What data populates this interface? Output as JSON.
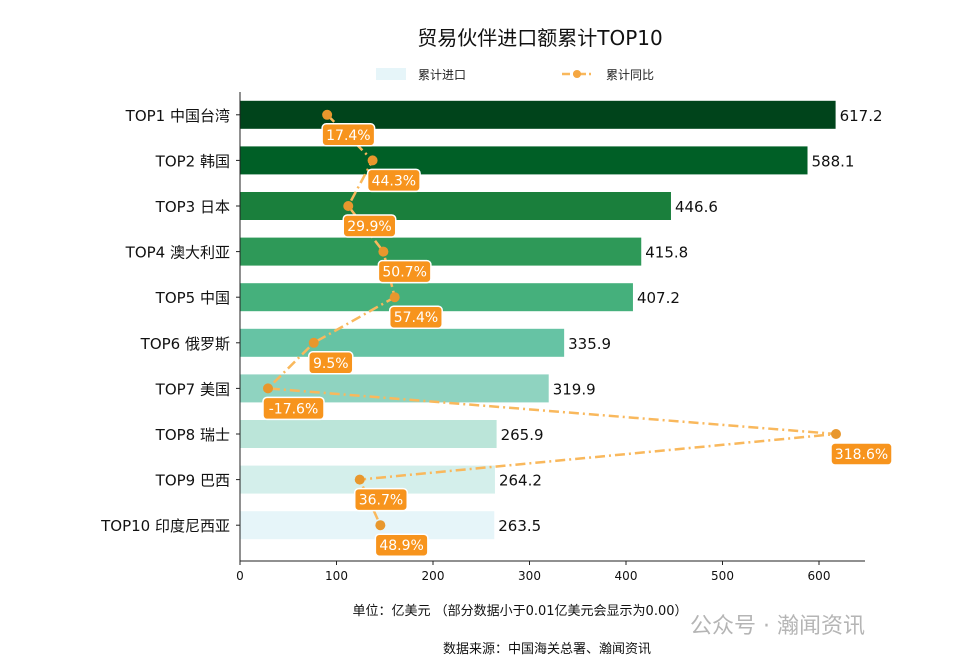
{
  "chart_data": {
    "type": "bar",
    "orientation": "horizontal",
    "title": "贸易伙伴进口额累计TOP10",
    "categories": [
      "TOP1 中国台湾",
      "TOP2 韩国",
      "TOP3 日本",
      "TOP4 澳大利亚",
      "TOP5 中国",
      "TOP6 俄罗斯",
      "TOP7 美国",
      "TOP8 瑞士",
      "TOP9 巴西",
      "TOP10 印度尼西亚"
    ],
    "series": [
      {
        "name": "累计进口",
        "type": "bar",
        "values": [
          617.2,
          588.1,
          446.6,
          415.8,
          407.2,
          335.9,
          319.9,
          265.9,
          264.2,
          263.5
        ],
        "colors": [
          "#00441b",
          "#005f26",
          "#1a7f3c",
          "#2e9958",
          "#45b07c",
          "#66c3a4",
          "#8fd3c0",
          "#bbe5d9",
          "#d4efeb",
          "#e6f5f9"
        ]
      },
      {
        "name": "累计同比",
        "type": "line",
        "values": [
          17.4,
          44.3,
          29.9,
          50.7,
          57.4,
          9.5,
          -17.6,
          318.6,
          36.7,
          48.9
        ],
        "unit": "%",
        "color": "#f9b85c",
        "label_color": "#f7941d"
      }
    ],
    "xticks": [
      0,
      100,
      200,
      300,
      400,
      500,
      600
    ],
    "xlim": [
      0,
      648
    ],
    "legend_position": "top",
    "grid": false,
    "xlabel": "单位：亿美元  （部分数据小于0.01亿美元会显示为0.00）",
    "source": "数据来源：中国海关总署、瀚闻资讯",
    "watermark": "公众号 · 瀚闻资讯"
  }
}
